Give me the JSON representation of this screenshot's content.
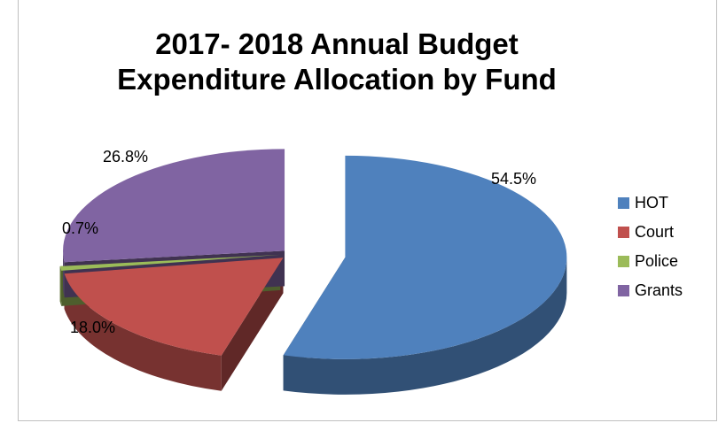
{
  "chart_data": {
    "type": "pie",
    "title": "2017- 2018 Annual Budget Expenditure Allocation by Fund",
    "title_lines": [
      "2017- 2018 Annual Budget",
      "Expenditure Allocation by Fund"
    ],
    "categories": [
      "HOT",
      "Court",
      "Police",
      "Grants"
    ],
    "values": [
      54.5,
      18.0,
      0.7,
      26.8
    ],
    "labels": [
      "54.5%",
      "18.0%",
      "0.7%",
      "26.8%"
    ],
    "colors": [
      "#4f81bd",
      "#c0504d",
      "#9bbb59",
      "#8064a2"
    ],
    "style": "3d-exploded",
    "legend": {
      "position": "right",
      "entries": [
        "HOT",
        "Court",
        "Police",
        "Grants"
      ]
    }
  }
}
